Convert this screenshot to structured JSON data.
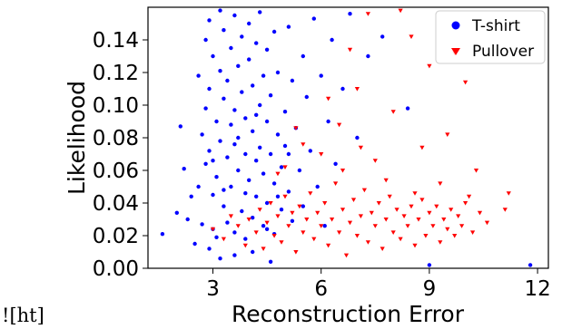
{
  "page_note": "![ht]",
  "chart_data": {
    "type": "scatter",
    "xlabel": "Reconstruction Error",
    "ylabel": "Likelihood",
    "xlim": [
      1.2,
      12.3
    ],
    "ylim": [
      0.0,
      0.16
    ],
    "xticks": [
      3,
      6,
      9,
      12
    ],
    "yticks": [
      0.0,
      0.02,
      0.04,
      0.06,
      0.08,
      0.1,
      0.12,
      0.14
    ],
    "ytick_labels": [
      "0.00",
      "0.02",
      "0.04",
      "0.06",
      "0.08",
      "0.10",
      "0.12",
      "0.14"
    ],
    "legend_position": "top-right",
    "series": [
      {
        "name": "T-shirt",
        "color": "#0000ff",
        "marker": "circle",
        "points": [
          [
            1.6,
            0.021
          ],
          [
            2.0,
            0.034
          ],
          [
            2.1,
            0.087
          ],
          [
            2.2,
            0.061
          ],
          [
            2.3,
            0.03
          ],
          [
            2.5,
            0.015
          ],
          [
            2.6,
            0.118
          ],
          [
            2.6,
            0.05
          ],
          [
            2.7,
            0.082
          ],
          [
            2.7,
            0.027
          ],
          [
            2.8,
            0.14
          ],
          [
            2.8,
            0.098
          ],
          [
            2.8,
            0.064
          ],
          [
            2.9,
            0.152
          ],
          [
            2.9,
            0.11
          ],
          [
            2.9,
            0.072
          ],
          [
            3.0,
            0.045
          ],
          [
            3.0,
            0.024
          ],
          [
            3.0,
            0.13
          ],
          [
            3.1,
            0.09
          ],
          [
            3.1,
            0.056
          ],
          [
            3.1,
            0.019
          ],
          [
            3.2,
            0.158
          ],
          [
            3.2,
            0.121
          ],
          [
            3.2,
            0.078
          ],
          [
            3.3,
            0.038
          ],
          [
            3.3,
            0.104
          ],
          [
            3.3,
            0.146
          ],
          [
            3.4,
            0.068
          ],
          [
            3.4,
            0.028
          ],
          [
            3.4,
            0.115
          ],
          [
            3.5,
            0.088
          ],
          [
            3.5,
            0.05
          ],
          [
            3.5,
            0.135
          ],
          [
            3.6,
            0.022
          ],
          [
            3.6,
            0.097
          ],
          [
            3.6,
            0.155
          ],
          [
            3.7,
            0.06
          ],
          [
            3.7,
            0.124
          ],
          [
            3.7,
            0.08
          ],
          [
            3.8,
            0.035
          ],
          [
            3.8,
            0.108
          ],
          [
            3.8,
            0.142
          ],
          [
            3.9,
            0.07
          ],
          [
            3.9,
            0.018
          ],
          [
            3.9,
            0.092
          ],
          [
            4.0,
            0.128
          ],
          [
            4.0,
            0.054
          ],
          [
            4.0,
            0.15
          ],
          [
            4.1,
            0.084
          ],
          [
            4.1,
            0.031
          ],
          [
            4.1,
            0.112
          ],
          [
            4.2,
            0.066
          ],
          [
            4.2,
            0.138
          ],
          [
            4.2,
            0.044
          ],
          [
            4.3,
            0.1
          ],
          [
            4.3,
            0.074
          ],
          [
            4.3,
            0.157
          ],
          [
            4.4,
            0.026
          ],
          [
            4.4,
            0.118
          ],
          [
            4.4,
            0.058
          ],
          [
            4.5,
            0.09
          ],
          [
            4.5,
            0.134
          ],
          [
            4.5,
            0.04
          ],
          [
            4.6,
            0.07
          ],
          [
            4.6,
            0.106
          ],
          [
            4.7,
            0.052
          ],
          [
            4.7,
            0.145
          ],
          [
            4.7,
            0.021
          ],
          [
            4.8,
            0.082
          ],
          [
            4.8,
            0.12
          ],
          [
            4.9,
            0.062
          ],
          [
            4.9,
            0.036
          ],
          [
            5.0,
            0.096
          ],
          [
            5.0,
            0.075
          ],
          [
            5.1,
            0.148
          ],
          [
            5.1,
            0.047
          ],
          [
            5.2,
            0.115
          ],
          [
            5.2,
            0.029
          ],
          [
            5.3,
            0.086
          ],
          [
            5.4,
            0.06
          ],
          [
            5.5,
            0.13
          ],
          [
            5.5,
            0.038
          ],
          [
            5.6,
            0.105
          ],
          [
            5.7,
            0.072
          ],
          [
            5.8,
            0.153
          ],
          [
            5.9,
            0.05
          ],
          [
            6.0,
            0.118
          ],
          [
            6.1,
            0.026
          ],
          [
            6.2,
            0.09
          ],
          [
            6.3,
            0.14
          ],
          [
            6.4,
            0.064
          ],
          [
            6.6,
            0.11
          ],
          [
            6.8,
            0.156
          ],
          [
            7.0,
            0.08
          ],
          [
            7.3,
            0.13
          ],
          [
            3.0,
            0.066
          ],
          [
            3.3,
            0.048
          ],
          [
            3.6,
            0.076
          ],
          [
            3.9,
            0.046
          ],
          [
            4.2,
            0.094
          ],
          [
            4.5,
            0.024
          ],
          [
            4.8,
            0.044
          ],
          [
            5.1,
            0.07
          ],
          [
            2.4,
            0.044
          ],
          [
            2.9,
            0.012
          ],
          [
            3.2,
            0.006
          ],
          [
            3.6,
            0.008
          ],
          [
            4.1,
            0.01
          ],
          [
            4.6,
            0.004
          ],
          [
            7.7,
            0.142
          ],
          [
            8.4,
            0.098
          ],
          [
            9.0,
            0.002
          ],
          [
            11.8,
            0.002
          ]
        ]
      },
      {
        "name": "Pullover",
        "color": "#ff0000",
        "marker": "triangle-down",
        "points": [
          [
            3.0,
            0.024
          ],
          [
            3.3,
            0.018
          ],
          [
            3.5,
            0.032
          ],
          [
            3.7,
            0.026
          ],
          [
            3.9,
            0.014
          ],
          [
            4.0,
            0.03
          ],
          [
            4.2,
            0.022
          ],
          [
            4.3,
            0.036
          ],
          [
            4.4,
            0.012
          ],
          [
            4.5,
            0.028
          ],
          [
            4.6,
            0.04
          ],
          [
            4.7,
            0.02
          ],
          [
            4.8,
            0.032
          ],
          [
            4.9,
            0.016
          ],
          [
            5.0,
            0.044
          ],
          [
            5.1,
            0.026
          ],
          [
            5.2,
            0.034
          ],
          [
            5.3,
            0.01
          ],
          [
            5.4,
            0.038
          ],
          [
            5.5,
            0.022
          ],
          [
            5.6,
            0.03
          ],
          [
            5.7,
            0.046
          ],
          [
            5.8,
            0.018
          ],
          [
            5.9,
            0.034
          ],
          [
            6.0,
            0.026
          ],
          [
            6.1,
            0.04
          ],
          [
            6.2,
            0.014
          ],
          [
            6.3,
            0.03
          ],
          [
            6.4,
            0.052
          ],
          [
            6.5,
            0.022
          ],
          [
            6.6,
            0.036
          ],
          [
            6.7,
            0.008
          ],
          [
            6.8,
            0.028
          ],
          [
            6.9,
            0.042
          ],
          [
            7.0,
            0.02
          ],
          [
            7.1,
            0.032
          ],
          [
            7.2,
            0.048
          ],
          [
            7.3,
            0.016
          ],
          [
            7.4,
            0.034
          ],
          [
            7.5,
            0.026
          ],
          [
            7.6,
            0.04
          ],
          [
            7.7,
            0.012
          ],
          [
            7.8,
            0.03
          ],
          [
            7.9,
            0.044
          ],
          [
            8.0,
            0.022
          ],
          [
            8.1,
            0.036
          ],
          [
            8.2,
            0.018
          ],
          [
            8.3,
            0.032
          ],
          [
            8.4,
            0.026
          ],
          [
            8.5,
            0.038
          ],
          [
            8.6,
            0.014
          ],
          [
            8.7,
            0.03
          ],
          [
            8.8,
            0.042
          ],
          [
            8.9,
            0.02
          ],
          [
            9.0,
            0.034
          ],
          [
            9.1,
            0.026
          ],
          [
            9.2,
            0.038
          ],
          [
            9.3,
            0.016
          ],
          [
            9.4,
            0.03
          ],
          [
            9.5,
            0.024
          ],
          [
            9.6,
            0.036
          ],
          [
            9.7,
            0.02
          ],
          [
            9.8,
            0.032
          ],
          [
            9.9,
            0.026
          ],
          [
            10.0,
            0.04
          ],
          [
            10.2,
            0.022
          ],
          [
            10.4,
            0.034
          ],
          [
            10.6,
            0.028
          ],
          [
            6.0,
            0.07
          ],
          [
            6.5,
            0.088
          ],
          [
            7.0,
            0.11
          ],
          [
            7.5,
            0.066
          ],
          [
            8.0,
            0.096
          ],
          [
            8.5,
            0.142
          ],
          [
            9.0,
            0.124
          ],
          [
            9.5,
            0.082
          ],
          [
            10.0,
            0.114
          ],
          [
            10.3,
            0.06
          ],
          [
            5.5,
            0.076
          ],
          [
            6.8,
            0.134
          ],
          [
            7.3,
            0.156
          ],
          [
            8.2,
            0.158
          ],
          [
            8.8,
            0.074
          ],
          [
            9.7,
            0.132
          ],
          [
            4.8,
            0.058
          ],
          [
            5.3,
            0.086
          ],
          [
            6.2,
            0.104
          ],
          [
            7.8,
            0.054
          ],
          [
            8.6,
            0.046
          ],
          [
            9.3,
            0.052
          ],
          [
            10.1,
            0.044
          ],
          [
            11.2,
            0.046
          ],
          [
            11.1,
            0.036
          ],
          [
            5.0,
            0.062
          ],
          [
            6.6,
            0.06
          ],
          [
            7.1,
            0.074
          ]
        ]
      }
    ]
  }
}
